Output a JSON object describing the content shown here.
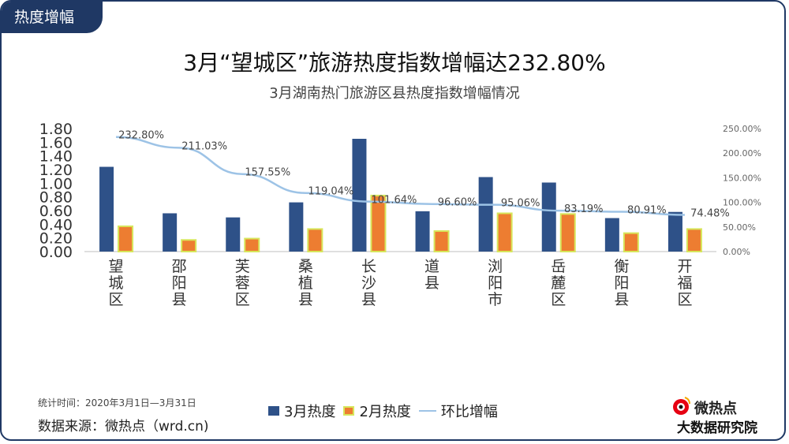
{
  "header": {
    "tag": "热度增幅"
  },
  "chart_data": {
    "type": "bar",
    "title": "3月“望城区”旅游热度指数增幅达232.80%",
    "subtitle": "3月湖南热门旅游区县热度指数增幅情况",
    "categories": [
      "望城区",
      "邵阳县",
      "芙蓉区",
      "桑植县",
      "长沙县",
      "道县",
      "浏阳市",
      "岳麓区",
      "衡阳县",
      "开福区"
    ],
    "series": [
      {
        "name": "3月热度",
        "type": "bar",
        "axis": "left",
        "color": "#2e5188",
        "values": [
          1.24,
          0.56,
          0.5,
          0.72,
          1.65,
          0.59,
          1.09,
          1.01,
          0.49,
          0.58
        ]
      },
      {
        "name": "2月热度",
        "type": "bar",
        "axis": "left",
        "color": "#ed7d31",
        "values": [
          0.37,
          0.17,
          0.19,
          0.33,
          0.82,
          0.3,
          0.56,
          0.55,
          0.27,
          0.33
        ]
      },
      {
        "name": "环比增幅",
        "type": "line",
        "axis": "right",
        "color": "#9dc3e6",
        "values": [
          232.8,
          211.03,
          157.55,
          119.04,
          101.64,
          96.6,
          95.06,
          83.19,
          80.91,
          74.48
        ]
      }
    ],
    "line_labels": [
      "232.80%",
      "211.03%",
      "157.55%",
      "119.04%",
      "101.64%",
      "96.60%",
      "95.06%",
      "83.19%",
      "80.91%",
      "74.48%"
    ],
    "y_left": {
      "ticks": [
        "0.00",
        "0.20",
        "0.40",
        "0.60",
        "0.80",
        "1.00",
        "1.20",
        "1.40",
        "1.60",
        "1.80"
      ],
      "range": [
        0,
        1.8
      ]
    },
    "y_right": {
      "ticks": [
        "0.00%",
        "50.00%",
        "100.00%",
        "150.00%",
        "200.00%",
        "250.00%"
      ],
      "range": [
        0,
        250
      ]
    },
    "grid": false,
    "legend_position": "bottom"
  },
  "footer": {
    "period": "统计时间：2020年3月1日—3月31日",
    "source": "数据来源：微热点（wrd.cn)",
    "logo_top": "微热点",
    "logo_bottom": "大数据研究院"
  }
}
